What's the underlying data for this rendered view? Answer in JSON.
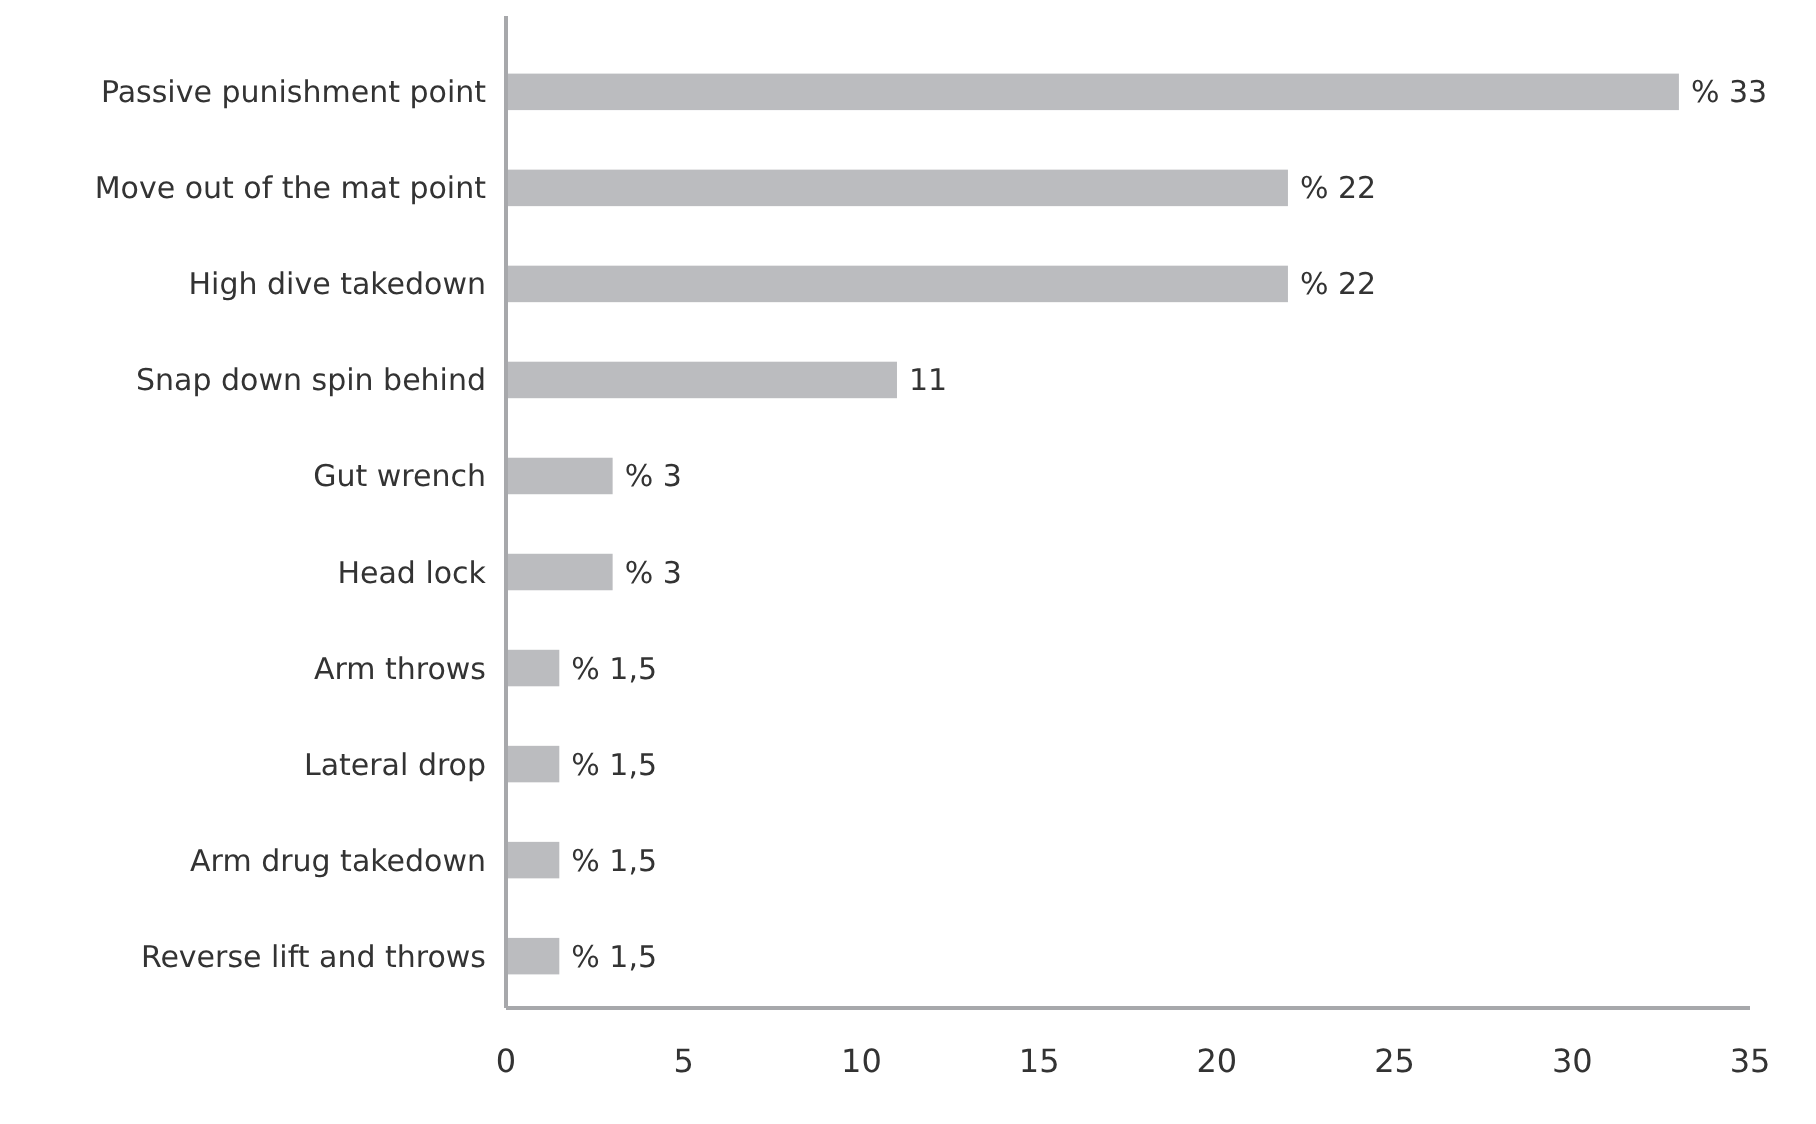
{
  "chart_data": {
    "type": "bar",
    "orientation": "horizontal",
    "categories": [
      "Passive punishment point",
      "Move out of the mat point",
      "High dive takedown",
      "Snap down spin behind",
      "Gut wrench",
      "Head lock",
      "Arm throws",
      "Lateral drop",
      "Arm drug takedown",
      "Reverse lift and throws"
    ],
    "values": [
      33,
      22,
      22,
      11,
      3,
      3,
      1.5,
      1.5,
      1.5,
      1.5
    ],
    "value_labels": [
      "% 33",
      "% 22",
      "% 22",
      "11",
      "% 3",
      "% 3",
      "% 1,5",
      "% 1,5",
      "% 1,5",
      "% 1,5"
    ],
    "color": "#bbbcbf",
    "xlim": [
      0,
      35
    ],
    "xticks": [
      0,
      5,
      10,
      15,
      20,
      25,
      30,
      35
    ],
    "grid": false
  }
}
